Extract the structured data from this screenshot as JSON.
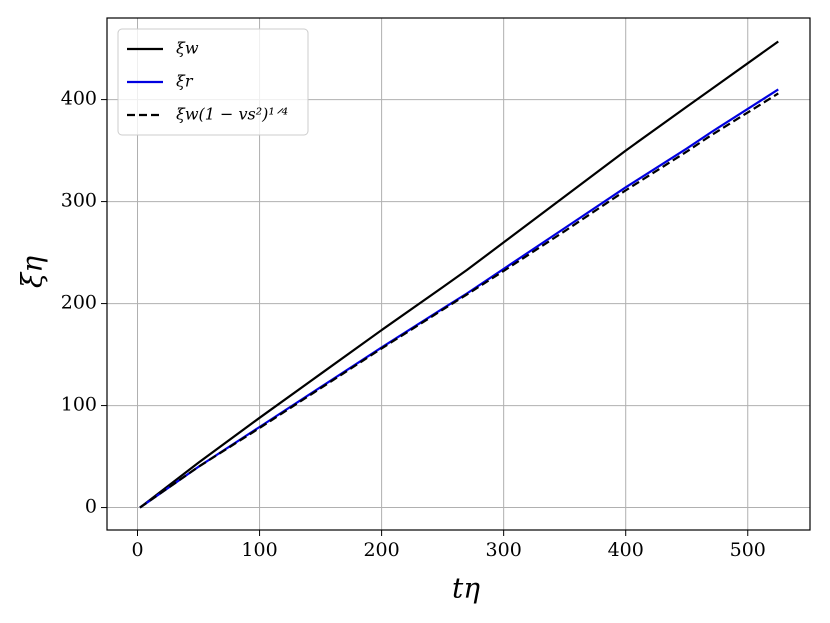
{
  "chart_data": {
    "type": "line",
    "xlabel": "tη",
    "ylabel": "ξη",
    "x": [
      2,
      50,
      100,
      150,
      200,
      250,
      270,
      300,
      350,
      400,
      450,
      470,
      525
    ],
    "series": [
      {
        "name": "ξw",
        "color": "#000000",
        "linestyle": "solid",
        "values": [
          0,
          44,
          88,
          131,
          174,
          216,
          233,
          260,
          305,
          350,
          393,
          410,
          457
        ]
      },
      {
        "name": "ξr",
        "color": "#0000e0",
        "linestyle": "solid",
        "values": [
          0,
          40,
          79,
          118,
          157,
          195,
          210,
          234,
          274,
          314,
          352,
          368,
          410
        ]
      },
      {
        "name": "ξw(1 − vs²)¹ᐟ⁴",
        "color": "#000000",
        "linestyle": "dashed",
        "values": [
          0,
          40,
          78,
          117,
          156,
          194,
          209,
          232,
          271,
          311,
          349,
          365,
          406
        ]
      }
    ],
    "xlim": [
      -25,
      551
    ],
    "ylim": [
      -22,
      480
    ],
    "xticks": [
      0,
      100,
      200,
      300,
      400,
      500
    ],
    "yticks": [
      0,
      100,
      200,
      300,
      400
    ],
    "grid": true,
    "legend": "upper left"
  }
}
